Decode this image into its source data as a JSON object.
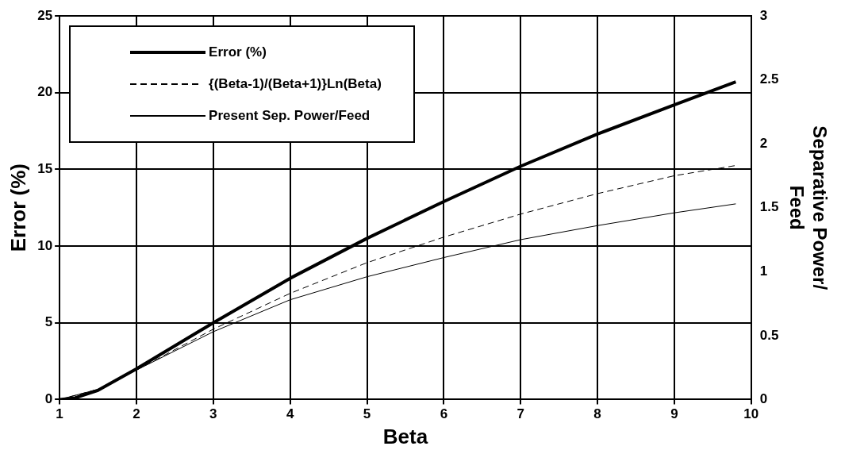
{
  "chart_data": {
    "type": "line",
    "xlabel": "Beta",
    "ylabel": "Error (%)",
    "y2label": "Separative Power/\nFeed",
    "xlim": [
      1,
      10
    ],
    "xticks": [
      1,
      2,
      3,
      4,
      5,
      6,
      7,
      8,
      9,
      10
    ],
    "ylim": [
      0,
      25
    ],
    "yticks": [
      0,
      5,
      10,
      15,
      20,
      25
    ],
    "y2lim": [
      0,
      3
    ],
    "y2ticks": [
      0,
      0.5,
      1,
      1.5,
      2,
      2.5,
      3
    ],
    "grid": true,
    "legend": "top left",
    "marker": "none",
    "series": [
      {
        "name": "Error (%)",
        "color": "#000000",
        "x": [
          1,
          1.2,
          1.5,
          2,
          3,
          4,
          5,
          6,
          7,
          8,
          9,
          9.8
        ],
        "values": [
          0,
          0.1,
          0.6,
          2,
          5,
          7.9,
          10.5,
          12.9,
          15.2,
          17.3,
          19.2,
          20.7
        ]
      },
      {
        "name": "{(Beta-1)/(Beta+1)}Ln(Beta)",
        "color": "#000000",
        "axis": "y2",
        "line_style": "dashed",
        "x": [
          1,
          1.5,
          2,
          3,
          4,
          5,
          6,
          7,
          8,
          9,
          9.8
        ],
        "values": [
          0,
          0.08,
          0.23,
          0.55,
          0.83,
          1.07,
          1.27,
          1.45,
          1.61,
          1.75,
          1.83
        ]
      },
      {
        "name": "Present Sep. Power/Feed",
        "color": "#000000",
        "axis": "y2",
        "x": [
          1,
          1.5,
          2,
          3,
          4,
          5,
          6,
          7,
          8,
          9,
          9.8
        ],
        "values": [
          0,
          0.08,
          0.23,
          0.53,
          0.78,
          0.96,
          1.11,
          1.25,
          1.36,
          1.46,
          1.53
        ]
      }
    ]
  }
}
